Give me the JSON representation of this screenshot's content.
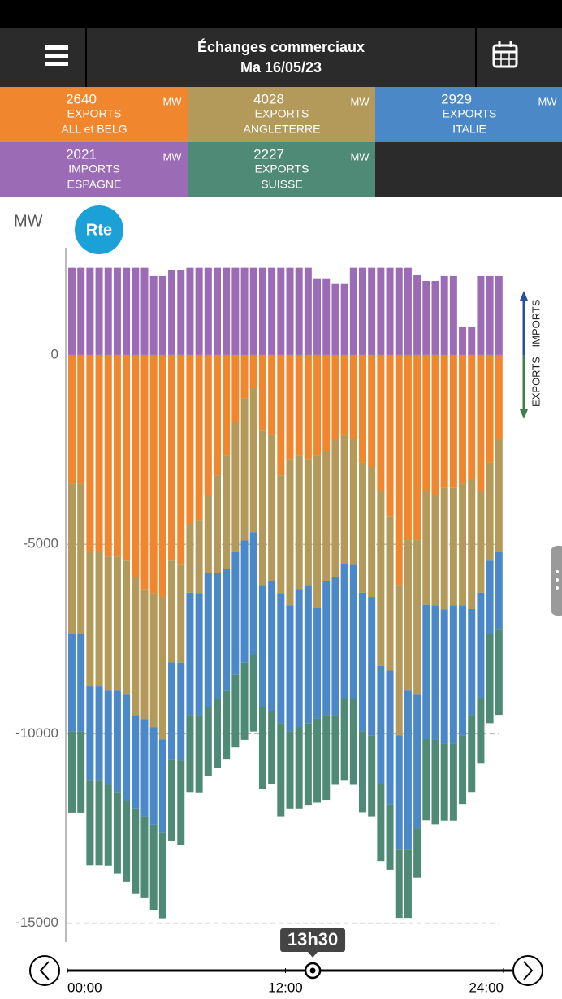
{
  "header": {
    "title": "Échanges commerciaux",
    "date": "Ma 16/05/23"
  },
  "tiles": [
    {
      "value": "2640",
      "unit": "MW",
      "kind": "EXPORTS",
      "name": "ALL et BELG",
      "color": "#f0872e"
    },
    {
      "value": "4028",
      "unit": "MW",
      "kind": "EXPORTS",
      "name": "ANGLETERRE",
      "color": "#b49a5a"
    },
    {
      "value": "2929",
      "unit": "MW",
      "kind": "EXPORTS",
      "name": "ITALIE",
      "color": "#4a88c7"
    },
    {
      "value": "2021",
      "unit": "MW",
      "kind": "IMPORTS",
      "name": "ESPAGNE",
      "color": "#9b6bb5"
    },
    {
      "value": "2227",
      "unit": "MW",
      "kind": "EXPORTS",
      "name": "SUISSE",
      "color": "#4f8a76"
    }
  ],
  "chart_data": {
    "type": "bar",
    "stacked": true,
    "y_label": "MW",
    "logo": "Rte",
    "direction_labels": {
      "imports": "IMPORTS",
      "exports": "EXPORTS"
    },
    "x": [
      0,
      0.5,
      1,
      1.5,
      2,
      2.5,
      3,
      3.5,
      4,
      4.5,
      5,
      5.5,
      6,
      6.5,
      7,
      7.5,
      8,
      8.5,
      9,
      9.5,
      10,
      10.5,
      11,
      11.5,
      12,
      12.5,
      13,
      13.5,
      14,
      14.5,
      15,
      15.5,
      16,
      16.5,
      17,
      17.5,
      18,
      18.5,
      19,
      19.5,
      20,
      20.5,
      21,
      21.5,
      22,
      22.5,
      23,
      23.5
    ],
    "xlim": [
      0,
      24
    ],
    "xticks": [
      {
        "value": 0,
        "label": "00:00"
      },
      {
        "value": 12,
        "label": "12:00"
      },
      {
        "value": 24,
        "label": "24:00"
      }
    ],
    "cursor": {
      "value": 13.5,
      "label": "13h30"
    },
    "ylim": [
      -15500,
      2850
    ],
    "yticks": [
      0,
      -5000,
      -10000,
      -15000
    ],
    "grid": true,
    "series": [
      {
        "color": "#9b6bb5",
        "values": [
          2300,
          2300,
          2300,
          2300,
          2300,
          2300,
          2300,
          2300,
          2300,
          2080,
          2080,
          2230,
          2230,
          2300,
          2300,
          2300,
          2300,
          2300,
          2300,
          2300,
          2300,
          2300,
          2300,
          2300,
          2300,
          2300,
          2300,
          2021,
          2020,
          1870,
          1870,
          2300,
          2300,
          2300,
          2300,
          2300,
          2300,
          2300,
          2120,
          1950,
          1950,
          2080,
          2080,
          750,
          750,
          2080,
          2080,
          2080
        ]
      },
      {
        "color": "#f0872e",
        "values": [
          -3390,
          -3390,
          -5210,
          -5210,
          -5320,
          -5320,
          -5430,
          -5860,
          -6180,
          -6290,
          -6390,
          -5430,
          -5540,
          -4460,
          -4360,
          -3710,
          -3180,
          -2640,
          -1780,
          -1140,
          -880,
          -2000,
          -2100,
          -3180,
          -2750,
          -2640,
          -2750,
          -2640,
          -2530,
          -2210,
          -2100,
          -2210,
          -2850,
          -2960,
          -3600,
          -4250,
          -6070,
          -4890,
          -4890,
          -3600,
          -3710,
          -3500,
          -3500,
          -3390,
          -3280,
          -3600,
          -2850,
          -2210
        ]
      },
      {
        "color": "#b49a5a",
        "values": [
          -3970,
          -3970,
          -3540,
          -3540,
          -3540,
          -3540,
          -3540,
          -3650,
          -3430,
          -3540,
          -3760,
          -2680,
          -2580,
          -1820,
          -1930,
          -2040,
          -2580,
          -3000,
          -3430,
          -3760,
          -3800,
          -4080,
          -3860,
          -3110,
          -3860,
          -3540,
          -3330,
          -4028,
          -3430,
          -3650,
          -3430,
          -3330,
          -3430,
          -3430,
          -4610,
          -4080,
          -3970,
          -3970,
          -4080,
          -3000,
          -2900,
          -3220,
          -3110,
          -3220,
          -3430,
          -2680,
          -2580,
          -3000
        ]
      },
      {
        "color": "#4a88c7",
        "values": [
          -2580,
          -2580,
          -2470,
          -2470,
          -2470,
          -2680,
          -2790,
          -2470,
          -2580,
          -2580,
          -2470,
          -2580,
          -2580,
          -3220,
          -3220,
          -3540,
          -3330,
          -3220,
          -3220,
          -3220,
          -3220,
          -3220,
          -3430,
          -3430,
          -3330,
          -3650,
          -3650,
          -2929,
          -3540,
          -3650,
          -3540,
          -3540,
          -3650,
          -3650,
          -3110,
          -3540,
          -3000,
          -4180,
          -3540,
          -3540,
          -3540,
          -3540,
          -3650,
          -3430,
          -2790,
          -2790,
          -1930,
          -2040
        ]
      },
      {
        "color": "#4f8a76",
        "values": [
          -2150,
          -2150,
          -2250,
          -2250,
          -2150,
          -2150,
          -2150,
          -2250,
          -2150,
          -2250,
          -2250,
          -2150,
          -2250,
          -2040,
          -2040,
          -1820,
          -1820,
          -1820,
          -1930,
          -2040,
          -2040,
          -2150,
          -1930,
          -2470,
          -2040,
          -2150,
          -2150,
          -2227,
          -2250,
          -1820,
          -2150,
          -2250,
          -2150,
          -2150,
          -2040,
          -1720,
          -1820,
          -1820,
          -1290,
          -2150,
          -2250,
          -2040,
          -2040,
          -1820,
          -2040,
          -1720,
          -2360,
          -2250
        ]
      }
    ]
  }
}
